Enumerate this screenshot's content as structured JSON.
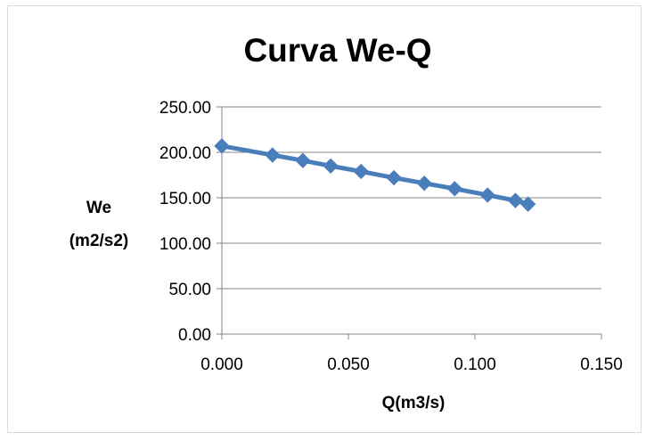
{
  "chart_data": {
    "type": "line",
    "title": "Curva We-Q",
    "xlabel": "Q(m3/s)",
    "ylabel_lines": [
      "We",
      "(m2/s2)"
    ],
    "xlim": [
      0,
      0.15
    ],
    "ylim": [
      0,
      250
    ],
    "x_ticks": [
      0,
      0.05,
      0.1,
      0.15
    ],
    "x_tick_labels": [
      "0.000",
      "0.050",
      "0.100",
      "0.150"
    ],
    "y_ticks": [
      0,
      50,
      100,
      150,
      200,
      250
    ],
    "y_tick_labels": [
      "0.00",
      "50.00",
      "100.00",
      "150.00",
      "200.00",
      "250.00"
    ],
    "grid": "horizontal",
    "legend": "none",
    "marker": "diamond",
    "color": "#4a7ebb",
    "series": [
      {
        "x": [
          0.0,
          0.02,
          0.032,
          0.043,
          0.055,
          0.068,
          0.08,
          0.092,
          0.105,
          0.116,
          0.121
        ],
        "y": [
          207,
          197,
          191,
          185,
          179,
          172,
          166,
          160,
          153,
          147,
          143
        ]
      }
    ]
  }
}
